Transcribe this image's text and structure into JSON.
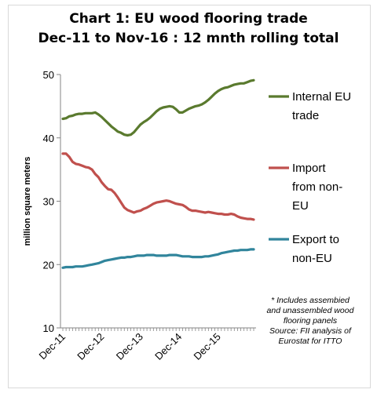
{
  "chart_data": {
    "type": "line",
    "title": [
      "Chart 1: EU wood flooring trade",
      "Dec-11 to Nov-16 : 12 mnth rolling total"
    ],
    "ylabel": "million square meters",
    "xlabel": "",
    "ylim": [
      10,
      50
    ],
    "yticks": [
      "10",
      "20",
      "30",
      "40",
      "50"
    ],
    "x_tick_labels": [
      "Dec-11",
      "Dec-12",
      "Dec-13",
      "Dec-14",
      "Dec-15"
    ],
    "x_tick_indices": [
      0,
      12,
      24,
      36,
      48
    ],
    "n_points": 60,
    "legend_position": "right",
    "series": [
      {
        "name": "Internal EU trade",
        "legend_lines": [
          "Internal EU",
          "trade"
        ],
        "color": "#5a7a2e",
        "values": [
          43.0,
          43.1,
          43.4,
          43.5,
          43.7,
          43.8,
          43.8,
          43.9,
          43.9,
          43.9,
          44.0,
          43.7,
          43.3,
          42.8,
          42.3,
          41.8,
          41.4,
          41.0,
          40.8,
          40.5,
          40.4,
          40.5,
          40.9,
          41.5,
          42.1,
          42.5,
          42.8,
          43.2,
          43.7,
          44.2,
          44.6,
          44.8,
          44.9,
          45.0,
          44.9,
          44.5,
          44.0,
          44.0,
          44.3,
          44.6,
          44.8,
          45.0,
          45.1,
          45.3,
          45.6,
          46.0,
          46.5,
          47.0,
          47.4,
          47.7,
          47.9,
          48.0,
          48.2,
          48.4,
          48.5,
          48.6,
          48.6,
          48.8,
          49.0,
          49.1
        ]
      },
      {
        "name": "Import from non-EU",
        "legend_lines": [
          "Import",
          "from non-",
          "EU"
        ],
        "color": "#c0504d",
        "values": [
          37.5,
          37.5,
          37.0,
          36.2,
          35.9,
          35.8,
          35.6,
          35.4,
          35.3,
          35.0,
          34.3,
          33.8,
          33.0,
          32.4,
          31.9,
          31.8,
          31.3,
          30.6,
          29.8,
          29.0,
          28.6,
          28.4,
          28.2,
          28.4,
          28.5,
          28.8,
          29.0,
          29.3,
          29.6,
          29.8,
          29.9,
          30.0,
          30.1,
          30.0,
          29.8,
          29.6,
          29.5,
          29.4,
          29.1,
          28.7,
          28.5,
          28.5,
          28.4,
          28.3,
          28.2,
          28.3,
          28.2,
          28.1,
          28.0,
          28.0,
          27.9,
          27.9,
          28.0,
          27.9,
          27.6,
          27.4,
          27.3,
          27.2,
          27.2,
          27.1
        ]
      },
      {
        "name": "Export to non-EU",
        "legend_lines": [
          "Export to",
          "non-EU"
        ],
        "color": "#31859c",
        "values": [
          19.5,
          19.6,
          19.6,
          19.6,
          19.7,
          19.7,
          19.7,
          19.8,
          19.9,
          20.0,
          20.1,
          20.2,
          20.4,
          20.6,
          20.7,
          20.8,
          20.9,
          21.0,
          21.1,
          21.1,
          21.2,
          21.2,
          21.3,
          21.4,
          21.4,
          21.4,
          21.5,
          21.5,
          21.5,
          21.4,
          21.4,
          21.4,
          21.4,
          21.5,
          21.5,
          21.5,
          21.4,
          21.3,
          21.3,
          21.3,
          21.2,
          21.2,
          21.2,
          21.2,
          21.3,
          21.3,
          21.4,
          21.5,
          21.6,
          21.8,
          21.9,
          22.0,
          22.1,
          22.2,
          22.2,
          22.3,
          22.3,
          22.3,
          22.4,
          22.4
        ]
      }
    ],
    "annotation": [
      "* Includes assembied",
      "and unassembled wood",
      "flooring panels",
      "Source: FII analysis of",
      "Eurostat for ITTO"
    ]
  }
}
